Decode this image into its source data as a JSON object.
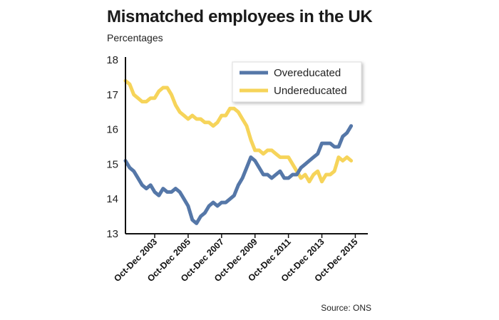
{
  "title": "Mismatched employees in the UK",
  "subtitle": "Percentages",
  "source": "Source: ONS",
  "colors": {
    "overeducated": "#5577a8",
    "undereducated": "#f6d45a",
    "axis": "#111111"
  },
  "chart_data": {
    "type": "line",
    "title": "Mismatched employees in the UK",
    "ylabel": "Percentages",
    "ylim": [
      13,
      18
    ],
    "yticks": [
      "13",
      "14",
      "15",
      "16",
      "17",
      "18"
    ],
    "xticks": [
      "Oct-Dec 2003",
      "Oct-Dec 2005",
      "Oct-Dec 2007",
      "Oct-Dec 2009",
      "Oct-Dec 2011",
      "Oct-Dec 2013",
      "Oct-Dec 2015"
    ],
    "x_start": 2002.0,
    "x_step": 0.25,
    "legend_position": "top-right",
    "series": [
      {
        "name": "Overeducated",
        "values": [
          15.1,
          14.9,
          14.8,
          14.6,
          14.4,
          14.3,
          14.4,
          14.2,
          14.1,
          14.3,
          14.2,
          14.2,
          14.3,
          14.2,
          14.0,
          13.8,
          13.4,
          13.3,
          13.5,
          13.6,
          13.8,
          13.9,
          13.8,
          13.9,
          13.9,
          14.0,
          14.1,
          14.4,
          14.6,
          14.9,
          15.2,
          15.1,
          14.9,
          14.7,
          14.7,
          14.6,
          14.7,
          14.8,
          14.6,
          14.6,
          14.7,
          14.7,
          14.9,
          15.0,
          15.1,
          15.2,
          15.3,
          15.6,
          15.6,
          15.6,
          15.5,
          15.5,
          15.8,
          15.9,
          16.1
        ]
      },
      {
        "name": "Undereducated",
        "values": [
          17.4,
          17.3,
          17.0,
          16.9,
          16.8,
          16.8,
          16.9,
          16.9,
          17.1,
          17.2,
          17.2,
          17.0,
          16.7,
          16.5,
          16.4,
          16.3,
          16.4,
          16.3,
          16.3,
          16.2,
          16.2,
          16.1,
          16.2,
          16.4,
          16.4,
          16.6,
          16.6,
          16.5,
          16.3,
          16.1,
          15.7,
          15.4,
          15.4,
          15.3,
          15.4,
          15.4,
          15.3,
          15.2,
          15.2,
          15.2,
          15.0,
          14.8,
          14.6,
          14.7,
          14.5,
          14.7,
          14.8,
          14.5,
          14.7,
          14.7,
          14.8,
          15.2,
          15.1,
          15.2,
          15.1
        ]
      }
    ]
  }
}
